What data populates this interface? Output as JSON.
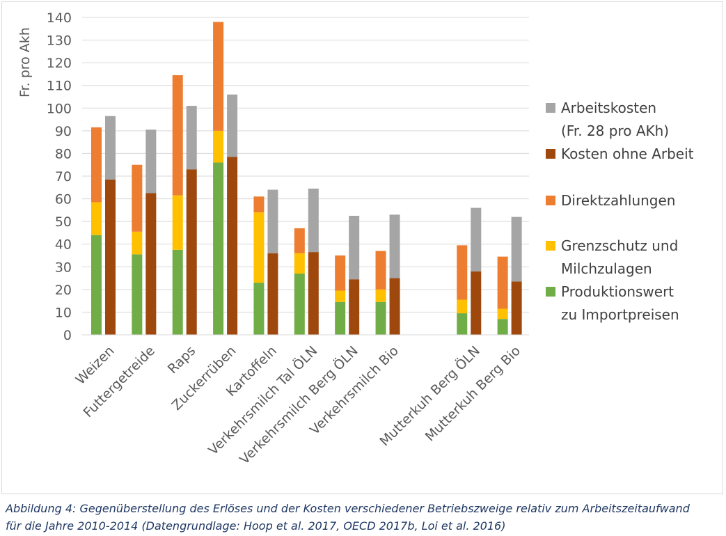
{
  "chart_data": {
    "type": "bar",
    "stacked": true,
    "ylabel": "Fr. pro Akh",
    "xlabel": "",
    "title": "",
    "ylim": [
      0,
      140
    ],
    "yticks": [
      0,
      10,
      20,
      30,
      40,
      50,
      60,
      70,
      80,
      90,
      100,
      110,
      120,
      130,
      140
    ],
    "grid": true,
    "legend_position": "right",
    "categories": [
      "Weizen",
      "Futtergetreide",
      "Raps",
      "Zuckerrüben",
      "Kartoffeln",
      "Verkehrsmilch Tal ÖLN",
      "Verkehrsmilch Berg ÖLN",
      "Verkehrsmilch Bio",
      "",
      "Mutterkuh Berg ÖLN",
      "Mutterkuh Berg Bio"
    ],
    "revenue_series": [
      {
        "name": "Produktionswert zu Importpreisen",
        "color": "#70ad47",
        "values": [
          44,
          35.5,
          37.5,
          76,
          23,
          27,
          14.5,
          14.5,
          null,
          9.5,
          7
        ]
      },
      {
        "name": "Grenzschutz und Milchzulagen",
        "color": "#ffc000",
        "values": [
          14.5,
          10,
          24,
          14,
          31,
          9,
          5,
          5.5,
          null,
          6,
          4.5
        ]
      },
      {
        "name": "Direktzahlungen",
        "color": "#ed7d31",
        "values": [
          33,
          29.5,
          53,
          48,
          7,
          11,
          15.5,
          17,
          null,
          24,
          23
        ]
      }
    ],
    "cost_series": [
      {
        "name": "Kosten ohne Arbeit",
        "color": "#9e480e",
        "values": [
          68.5,
          62.5,
          73,
          78.5,
          36,
          36.5,
          24.5,
          25,
          null,
          28,
          23.5
        ]
      },
      {
        "name": "Arbeitskosten (Fr. 28 pro AKh)",
        "color": "#a5a5a5",
        "values": [
          28,
          28,
          28,
          27.5,
          28,
          28,
          28,
          28,
          null,
          28,
          28.5
        ]
      }
    ],
    "legend": [
      {
        "lines": [
          "Arbeitskosten",
          "(Fr. 28 pro AKh)"
        ],
        "color": "#a5a5a5"
      },
      {
        "lines": [
          "Kosten ohne Arbeit"
        ],
        "color": "#9e480e"
      },
      {
        "lines": [
          "Direktzahlungen"
        ],
        "color": "#ed7d31"
      },
      {
        "lines": [
          "Grenzschutz und",
          "Milchzulagen"
        ],
        "color": "#ffc000"
      },
      {
        "lines": [
          "Produktionswert",
          "zu Importpreisen"
        ],
        "color": "#70ad47"
      }
    ]
  },
  "caption": {
    "line1": "Abbildung 4: Gegenüberstellung des Erlöses und der Kosten verschiedener Betriebszweige relativ zum Arbeitszeitaufwand",
    "line2": "für die Jahre 2010-2014 (Datengrundlage: Hoop et al. 2017, OECD 2017b, Loi et al. 2016)"
  }
}
